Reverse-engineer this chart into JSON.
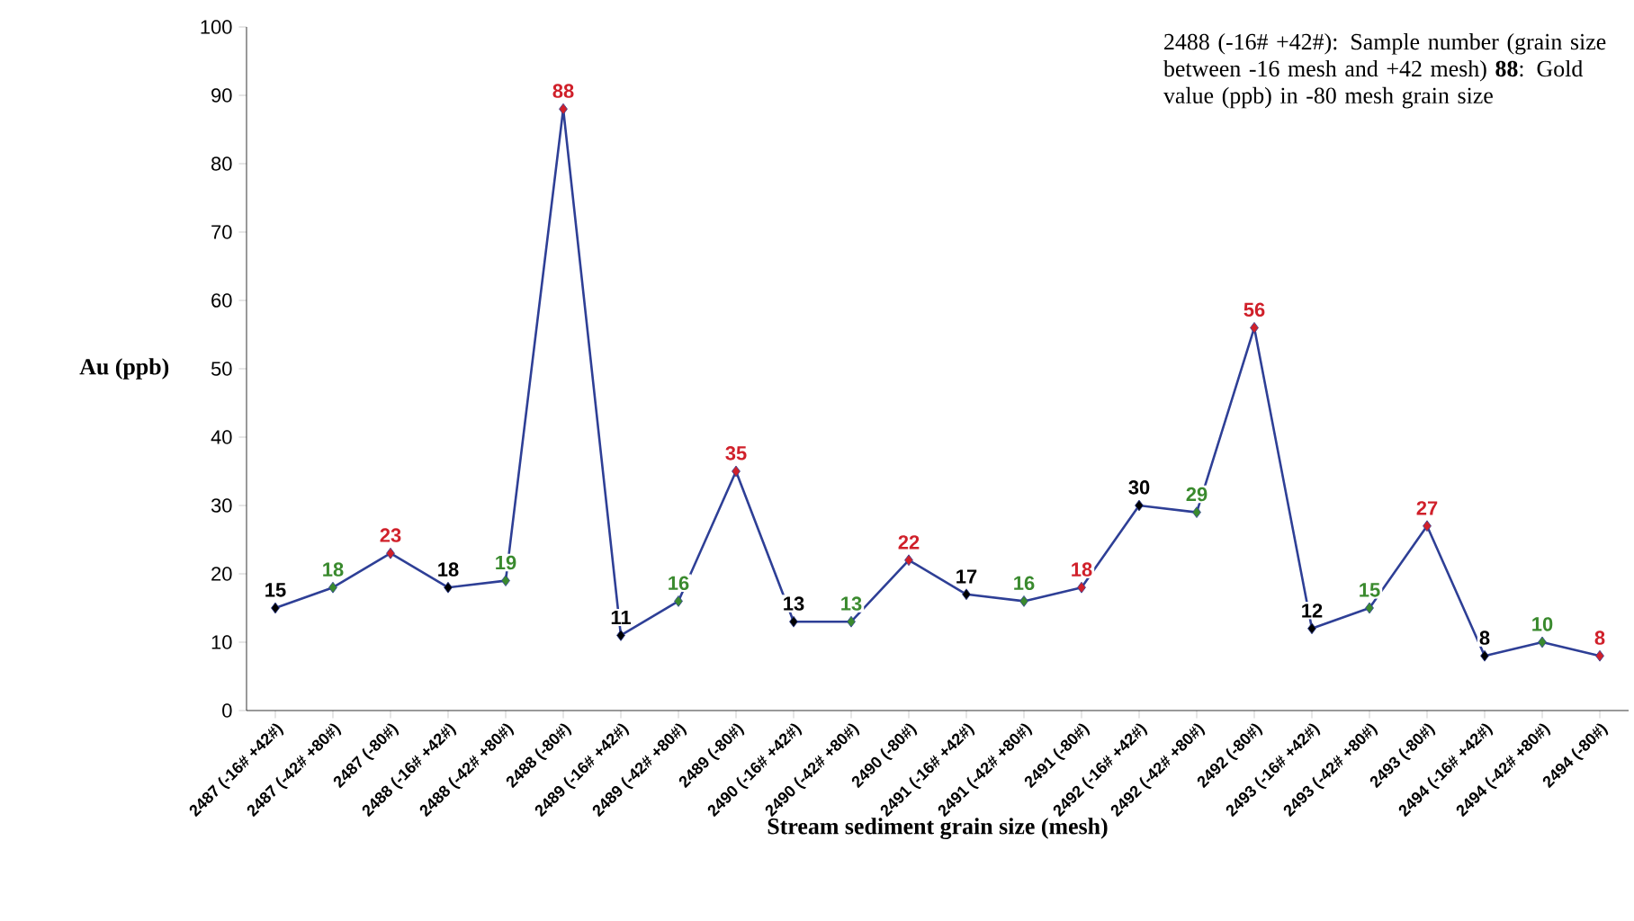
{
  "chart_data": {
    "type": "line",
    "xlabel": "Stream sediment grain size (mesh)",
    "ylabel": "Au (ppb)",
    "categories": [
      "2487 (-16# +42#)",
      "2487 (-42# +80#)",
      "2487 (-80#)",
      "2488 (-16# +42#)",
      "2488 (-42# +80#)",
      "2488 (-80#)",
      "2489 (-16# +42#)",
      "2489 (-42# +80#)",
      "2489 (-80#)",
      "2490 (-16# +42#)",
      "2490 (-42# +80#)",
      "2490 (-80#)",
      "2491 (-16# +42#)",
      "2491 (-42# +80#)",
      "2491 (-80#)",
      "2492 (-16# +42#)",
      "2492 (-42# +80#)",
      "2492 (-80#)",
      "2493 (-16# +42#)",
      "2493 (-42# +80#)",
      "2493 (-80#)",
      "2494 (-16# +42#)",
      "2494 (-42# +80#)",
      "2494 (-80#)"
    ],
    "series": [
      {
        "color": "#2e3f96",
        "values": [
          15,
          18,
          23,
          18,
          19,
          88,
          11,
          16,
          35,
          13,
          13,
          22,
          17,
          16,
          18,
          30,
          29,
          56,
          12,
          15,
          27,
          8,
          10,
          8
        ],
        "colors": [
          "#000000",
          "#3a8a2e",
          "#d0202a",
          "#000000",
          "#3a8a2e",
          "#d0202a",
          "#000000",
          "#3a8a2e",
          "#d0202a",
          "#000000",
          "#3a8a2e",
          "#d0202a",
          "#000000",
          "#3a8a2e",
          "#d0202a",
          "#000000",
          "#3a8a2e",
          "#d0202a",
          "#000000",
          "#3a8a2e",
          "#d0202a",
          "#000000",
          "#3a8a2e",
          "#d0202a"
        ]
      }
    ],
    "ylim": [
      0,
      100
    ],
    "yticks": [
      0,
      10,
      20,
      30,
      40,
      50,
      60,
      70,
      80,
      90,
      100
    ],
    "data_labels": true,
    "marker": "diamond",
    "line_style": "solid",
    "grid": false,
    "annotations": [
      "2488 (-16# +42#): Sample number (grain size between -16 mesh and +42 mesh) **88**: Gold value (ppb) in -80 mesh grain size"
    ]
  }
}
